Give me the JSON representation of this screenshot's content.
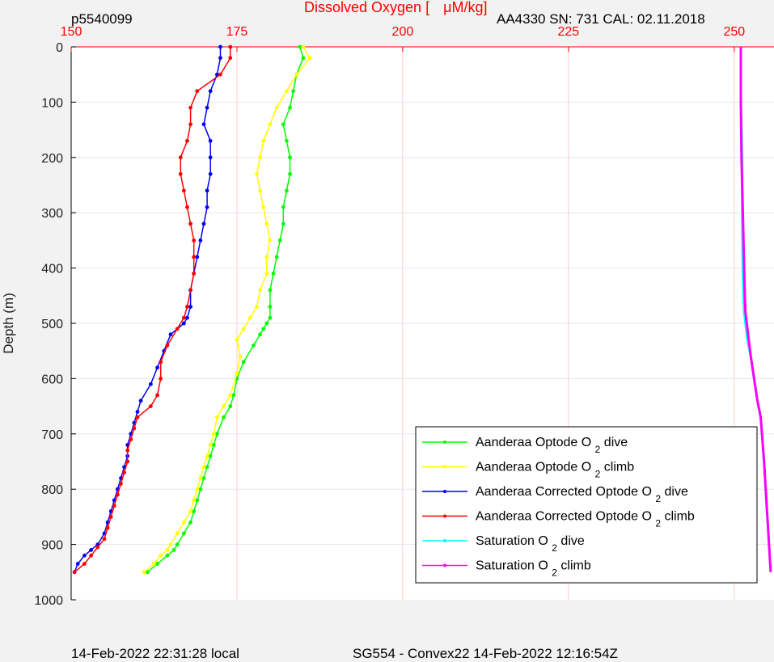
{
  "header": {
    "left": "p5540099",
    "title": "Dissolved Oxygen [",
    "title_unit": "μM/kg]",
    "right": "AA4330   SN: 731   CAL: 02.11.2018"
  },
  "footer": {
    "left": "14-Feb-2022 22:31:28 local",
    "center": "SG554 - Convex22 14-Feb-2022 12:16:54Z"
  },
  "chart_data": {
    "type": "scatter",
    "title": "Dissolved Oxygen [μM/kg]",
    "xlabel": "Dissolved Oxygen [μM/kg]",
    "ylabel": "Depth (m)",
    "xlim": [
      150,
      256
    ],
    "ylim": [
      0,
      1000
    ],
    "y_reversed": true,
    "x_axis_position": "top",
    "x_ticks": [
      150,
      175,
      200,
      225,
      250
    ],
    "y_ticks": [
      0,
      100,
      200,
      300,
      400,
      500,
      600,
      700,
      800,
      900,
      1000
    ],
    "grid": true,
    "legend_position": "bottom-right",
    "axis_color": "#ff0000",
    "series": [
      {
        "name": "Aanderaa Optode O2 dive",
        "label": "Aanderaa Optode O",
        "sub": "2",
        "suffix": "dive",
        "color": "#00ff00",
        "marker": "dot",
        "x": [
          184.5,
          185,
          184,
          183.5,
          183,
          182,
          182.5,
          183,
          183,
          182.5,
          182,
          182,
          181.5,
          181,
          180.5,
          180,
          180,
          180,
          179.5,
          179,
          178.5,
          177.5,
          176,
          175,
          174.5,
          174,
          173,
          172,
          171.5,
          171,
          170.5,
          170,
          169.5,
          169,
          168.5,
          168,
          167,
          166,
          165.5,
          164.5,
          163,
          161.5
        ],
        "y": [
          0,
          20,
          50,
          80,
          110,
          140,
          170,
          200,
          230,
          260,
          290,
          320,
          350,
          380,
          410,
          440,
          470,
          490,
          500,
          510,
          520,
          540,
          570,
          600,
          630,
          650,
          670,
          700,
          720,
          740,
          760,
          780,
          800,
          820,
          840,
          860,
          880,
          900,
          910,
          920,
          935,
          950
        ]
      },
      {
        "name": "Aanderaa Optode O2 climb",
        "label": "Aanderaa Optode O",
        "sub": "2",
        "suffix": "climb",
        "color": "#ffff00",
        "marker": "dot",
        "x": [
          185,
          186,
          184,
          182.5,
          181,
          180,
          179,
          178.5,
          178,
          178.5,
          179,
          179.5,
          180,
          179.5,
          179.5,
          178.5,
          178,
          177,
          176,
          175,
          175.5,
          175,
          174,
          173,
          172,
          171.5,
          171,
          170.5,
          170,
          169.5,
          169,
          168.5,
          168,
          167,
          166,
          165,
          164.5,
          163.5,
          162.5,
          161
        ],
        "y": [
          0,
          20,
          50,
          80,
          110,
          140,
          170,
          200,
          230,
          260,
          290,
          320,
          350,
          380,
          410,
          440,
          470,
          490,
          510,
          530,
          560,
          590,
          630,
          650,
          670,
          700,
          720,
          740,
          760,
          780,
          800,
          820,
          840,
          860,
          880,
          900,
          910,
          920,
          935,
          950
        ]
      },
      {
        "name": "Aanderaa Corrected Optode O2 dive",
        "label": "Aanderaa Corrected Optode O",
        "sub": "2",
        "suffix": "dive",
        "color": "#0000ff",
        "marker": "dot",
        "x": [
          172.5,
          172.5,
          172,
          171,
          170.5,
          170,
          171,
          171,
          171,
          170.5,
          170.5,
          170,
          169.5,
          169,
          168.5,
          168,
          168,
          167.5,
          167,
          165,
          164,
          163,
          162,
          160.5,
          160,
          159.5,
          159,
          158.5,
          158.5,
          158,
          157.5,
          157,
          156.5,
          156,
          155.5,
          155,
          154,
          153,
          152,
          151,
          150.5
        ],
        "y": [
          0,
          20,
          50,
          80,
          110,
          140,
          170,
          200,
          230,
          260,
          290,
          320,
          350,
          380,
          410,
          440,
          470,
          490,
          500,
          520,
          550,
          580,
          610,
          640,
          660,
          680,
          700,
          720,
          740,
          760,
          780,
          800,
          820,
          840,
          860,
          880,
          900,
          910,
          920,
          935,
          950
        ]
      },
      {
        "name": "Aanderaa Corrected Optode O2 climb",
        "label": "Aanderaa Corrected Optode O",
        "sub": "2",
        "suffix": "climb",
        "color": "#ff0000",
        "marker": "dot",
        "x": [
          174,
          174,
          172.5,
          169,
          168,
          168,
          167.5,
          166.5,
          166.5,
          167,
          167.5,
          168,
          168.5,
          168.5,
          168.5,
          168,
          167.5,
          167,
          166,
          164.5,
          163.5,
          163.5,
          163,
          162,
          160,
          159.5,
          159,
          158.5,
          158.5,
          158,
          157.5,
          157,
          156.5,
          156,
          155.5,
          155,
          154,
          153,
          152,
          150.5
        ],
        "y": [
          0,
          20,
          50,
          80,
          110,
          140,
          170,
          200,
          230,
          260,
          290,
          320,
          350,
          380,
          410,
          440,
          470,
          490,
          510,
          540,
          570,
          600,
          630,
          650,
          670,
          690,
          710,
          730,
          750,
          770,
          790,
          810,
          830,
          850,
          870,
          890,
          905,
          920,
          935,
          950
        ]
      },
      {
        "name": "Saturation O2 dive",
        "label": "Saturation O",
        "sub": "2",
        "suffix": "dive",
        "color": "#00ffff",
        "marker": "none",
        "x": [
          251,
          251,
          251.2,
          251.2,
          251.3,
          251.4,
          251.5,
          251.7,
          252,
          252.5,
          253,
          253.5,
          254,
          254.5,
          255,
          255.5
        ],
        "y": [
          0,
          100,
          200,
          300,
          400,
          450,
          480,
          500,
          530,
          560,
          600,
          640,
          670,
          750,
          850,
          950
        ]
      },
      {
        "name": "Saturation O2 climb",
        "label": "Saturation O",
        "sub": "2",
        "suffix": "climb",
        "color": "#ff00ff",
        "marker": "none",
        "x": [
          251,
          251,
          251.1,
          251.3,
          251.5,
          251.6,
          251.7,
          251.9,
          252.2,
          252.5,
          253,
          253.5,
          254,
          254.5,
          255,
          255.5
        ],
        "y": [
          0,
          100,
          200,
          300,
          400,
          450,
          480,
          500,
          530,
          560,
          600,
          640,
          670,
          750,
          850,
          950
        ]
      }
    ]
  }
}
